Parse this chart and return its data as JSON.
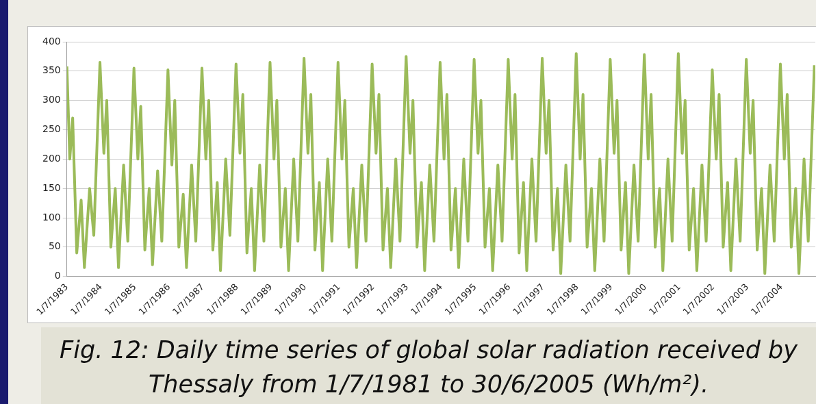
{
  "chart_data": {
    "type": "line",
    "title": "Fig. 12: Daily time series of global solar radiation received by Thessaly from 1/7/1981 to 30/6/2005 (Wh/m²).",
    "x": [
      "1983-07-01",
      "1983-08-01",
      "1983-09-01",
      "1983-10-15",
      "1983-12-01",
      "1984-01-05",
      "1984-03-01",
      "1984-04-15",
      "1984-06-20",
      "1984-08-01",
      "1984-09-01",
      "1984-10-15",
      "1984-12-01",
      "1985-01-05",
      "1985-03-01",
      "1985-04-15",
      "1985-06-20",
      "1985-08-01",
      "1985-09-01",
      "1985-10-15",
      "1985-12-01",
      "1986-01-05",
      "1986-03-01",
      "1986-04-15",
      "1986-06-20",
      "1986-08-01",
      "1986-09-01",
      "1986-10-15",
      "1986-12-01",
      "1987-01-05",
      "1987-03-01",
      "1987-04-15",
      "1987-06-20",
      "1987-08-01",
      "1987-09-01",
      "1987-10-15",
      "1987-12-01",
      "1988-01-05",
      "1988-03-01",
      "1988-04-15",
      "1988-06-20",
      "1988-08-01",
      "1988-09-01",
      "1988-10-15",
      "1988-12-01",
      "1989-01-05",
      "1989-03-01",
      "1989-04-15",
      "1989-06-20",
      "1989-08-01",
      "1989-09-01",
      "1989-10-15",
      "1989-12-01",
      "1990-01-05",
      "1990-03-01",
      "1990-04-15",
      "1990-06-20",
      "1990-08-01",
      "1990-09-01",
      "1990-10-15",
      "1990-12-01",
      "1991-01-05",
      "1991-03-01",
      "1991-04-15",
      "1991-06-20",
      "1991-08-01",
      "1991-09-01",
      "1991-10-15",
      "1991-12-01",
      "1992-01-05",
      "1992-03-01",
      "1992-04-15",
      "1992-06-20",
      "1992-08-01",
      "1992-09-01",
      "1992-10-15",
      "1992-12-01",
      "1993-01-05",
      "1993-03-01",
      "1993-04-15",
      "1993-06-20",
      "1993-08-01",
      "1993-09-01",
      "1993-10-15",
      "1993-12-01",
      "1994-01-05",
      "1994-03-01",
      "1994-04-15",
      "1994-06-20",
      "1994-08-01",
      "1994-09-01",
      "1994-10-15",
      "1994-12-01",
      "1995-01-05",
      "1995-03-01",
      "1995-04-15",
      "1995-06-20",
      "1995-08-01",
      "1995-09-01",
      "1995-10-15",
      "1995-12-01",
      "1996-01-05",
      "1996-03-01",
      "1996-04-15",
      "1996-06-20",
      "1996-08-01",
      "1996-09-01",
      "1996-10-15",
      "1996-12-01",
      "1997-01-05",
      "1997-03-01",
      "1997-04-15",
      "1997-06-20",
      "1997-08-01",
      "1997-09-01",
      "1997-10-15",
      "1997-12-01",
      "1998-01-05",
      "1998-03-01",
      "1998-04-15",
      "1998-06-20",
      "1998-08-01",
      "1998-09-01",
      "1998-10-15",
      "1998-12-01",
      "1999-01-05",
      "1999-03-01",
      "1999-04-15",
      "1999-06-20",
      "1999-08-01",
      "1999-09-01",
      "1999-10-15",
      "1999-12-01",
      "2000-01-05",
      "2000-03-01",
      "2000-04-15",
      "2000-06-20",
      "2000-08-01",
      "2000-09-01",
      "2000-10-15",
      "2000-12-01",
      "2001-01-05",
      "2001-03-01",
      "2001-04-15",
      "2001-06-20",
      "2001-08-01",
      "2001-09-01",
      "2001-10-15",
      "2001-12-01",
      "2002-01-05",
      "2002-03-01",
      "2002-04-15",
      "2002-06-20",
      "2002-08-01",
      "2002-09-01",
      "2002-10-15",
      "2002-12-01",
      "2003-01-05",
      "2003-03-01",
      "2003-04-15",
      "2003-06-20",
      "2003-08-01",
      "2003-09-01",
      "2003-10-15",
      "2003-12-01",
      "2004-01-05",
      "2004-03-01",
      "2004-04-15",
      "2004-06-20",
      "2004-08-01",
      "2004-09-01",
      "2004-10-15",
      "2004-12-01",
      "2005-01-05",
      "2005-03-01",
      "2005-04-15",
      "2005-06-20"
    ],
    "series": [
      {
        "color": "#9bbb59",
        "values": [
          358,
          200,
          270,
          40,
          130,
          15,
          150,
          70,
          365,
          210,
          300,
          50,
          150,
          15,
          190,
          60,
          355,
          200,
          290,
          45,
          150,
          20,
          180,
          60,
          352,
          190,
          300,
          50,
          140,
          15,
          190,
          60,
          355,
          200,
          300,
          45,
          160,
          10,
          200,
          70,
          362,
          210,
          310,
          40,
          150,
          10,
          190,
          60,
          365,
          200,
          300,
          50,
          150,
          10,
          200,
          60,
          372,
          210,
          310,
          45,
          160,
          10,
          200,
          60,
          365,
          200,
          300,
          50,
          150,
          15,
          190,
          60,
          362,
          210,
          310,
          45,
          150,
          15,
          200,
          60,
          375,
          210,
          300,
          50,
          160,
          10,
          190,
          60,
          365,
          200,
          310,
          45,
          150,
          15,
          200,
          60,
          370,
          210,
          300,
          50,
          150,
          10,
          190,
          60,
          370,
          200,
          310,
          40,
          160,
          10,
          200,
          60,
          372,
          210,
          300,
          45,
          150,
          5,
          190,
          60,
          380,
          200,
          310,
          50,
          150,
          10,
          200,
          60,
          370,
          210,
          300,
          45,
          160,
          5,
          190,
          60,
          378,
          200,
          310,
          50,
          150,
          10,
          200,
          60,
          380,
          210,
          300,
          45,
          150,
          10,
          190,
          60,
          352,
          200,
          310,
          50,
          160,
          10,
          200,
          60,
          370,
          210,
          300,
          45,
          150,
          5,
          190,
          60,
          362,
          200,
          310,
          50,
          150,
          5,
          200,
          60,
          360
        ]
      }
    ],
    "xlim": [
      "1983-07-01",
      "2005-06-30"
    ],
    "xticks": [
      {
        "value": "1983-07-01",
        "label": "1/7/1983"
      },
      {
        "value": "1984-07-01",
        "label": "1/7/1984"
      },
      {
        "value": "1985-07-01",
        "label": "1/7/1985"
      },
      {
        "value": "1986-07-01",
        "label": "1/7/1986"
      },
      {
        "value": "1987-07-01",
        "label": "1/7/1987"
      },
      {
        "value": "1988-07-01",
        "label": "1/7/1988"
      },
      {
        "value": "1989-07-01",
        "label": "1/7/1989"
      },
      {
        "value": "1990-07-01",
        "label": "1/7/1990"
      },
      {
        "value": "1991-07-01",
        "label": "1/7/1991"
      },
      {
        "value": "1992-07-01",
        "label": "1/7/1992"
      },
      {
        "value": "1993-07-01",
        "label": "1/7/1993"
      },
      {
        "value": "1994-07-01",
        "label": "1/7/1994"
      },
      {
        "value": "1995-07-01",
        "label": "1/7/1995"
      },
      {
        "value": "1996-07-01",
        "label": "1/7/1996"
      },
      {
        "value": "1997-07-01",
        "label": "1/7/1997"
      },
      {
        "value": "1998-07-01",
        "label": "1/7/1998"
      },
      {
        "value": "1999-07-01",
        "label": "1/7/1999"
      },
      {
        "value": "2000-07-01",
        "label": "1/7/2000"
      },
      {
        "value": "2001-07-01",
        "label": "1/7/2001"
      },
      {
        "value": "2002-07-01",
        "label": "1/7/2002"
      },
      {
        "value": "2003-07-01",
        "label": "1/7/2003"
      },
      {
        "value": "2004-07-01",
        "label": "1/7/2004"
      }
    ],
    "ylim": [
      0,
      400
    ],
    "yticks": [
      0,
      50,
      100,
      150,
      200,
      250,
      300,
      350,
      400
    ],
    "grid": "y",
    "legend": false,
    "marker": "none",
    "line_style": "solid"
  }
}
